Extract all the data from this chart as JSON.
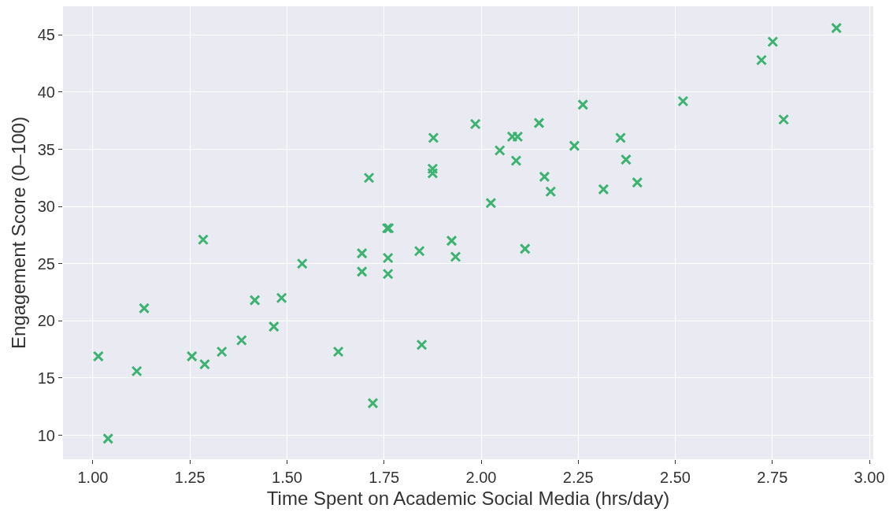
{
  "chart_data": {
    "type": "scatter",
    "xlabel": "Time Spent on Academic Social Media (hrs/day)",
    "ylabel": "Engagement Score (0–100)",
    "x": [
      1.014,
      1.039,
      1.113,
      1.132,
      1.255,
      1.284,
      1.288,
      1.332,
      1.383,
      1.417,
      1.466,
      1.486,
      1.539,
      1.632,
      1.693,
      1.693,
      1.711,
      1.721,
      1.758,
      1.762,
      1.76,
      1.76,
      1.841,
      1.847,
      1.875,
      1.875,
      1.877,
      1.924,
      1.934,
      1.985,
      2.025,
      2.048,
      2.08,
      2.094,
      2.09,
      2.113,
      2.149,
      2.163,
      2.179,
      2.24,
      2.262,
      2.315,
      2.359,
      2.373,
      2.402,
      2.52,
      2.722,
      2.751,
      2.779,
      2.915
    ],
    "series": [
      {
        "color": "#3cb371",
        "values": [
          16.9,
          9.7,
          15.6,
          21.1,
          16.9,
          27.1,
          16.2,
          17.3,
          18.3,
          21.8,
          19.5,
          22.0,
          25.0,
          17.3,
          25.9,
          24.3,
          32.5,
          12.8,
          28.1,
          28.1,
          25.5,
          24.1,
          26.1,
          17.9,
          33.3,
          32.9,
          36.0,
          27.0,
          25.6,
          37.2,
          30.3,
          34.9,
          36.1,
          36.1,
          34.0,
          26.3,
          37.3,
          32.6,
          31.3,
          35.3,
          38.9,
          31.5,
          36.0,
          34.1,
          32.1,
          39.2,
          42.8,
          44.4,
          37.6,
          45.6
        ]
      }
    ],
    "xlim": [
      0.923,
      3.01
    ],
    "ylim": [
      7.9,
      47.5
    ],
    "xticks": [
      {
        "value": 1.0,
        "label": "1.00"
      },
      {
        "value": 1.25,
        "label": "1.25"
      },
      {
        "value": 1.5,
        "label": "1.50"
      },
      {
        "value": 1.75,
        "label": "1.75"
      },
      {
        "value": 2.0,
        "label": "2.00"
      },
      {
        "value": 2.25,
        "label": "2.25"
      },
      {
        "value": 2.5,
        "label": "2.50"
      },
      {
        "value": 2.75,
        "label": "2.75"
      },
      {
        "value": 3.0,
        "label": "3.00"
      }
    ],
    "yticks": [
      10,
      15,
      20,
      25,
      30,
      35,
      40,
      45
    ],
    "grid": true,
    "marker": "cross"
  }
}
